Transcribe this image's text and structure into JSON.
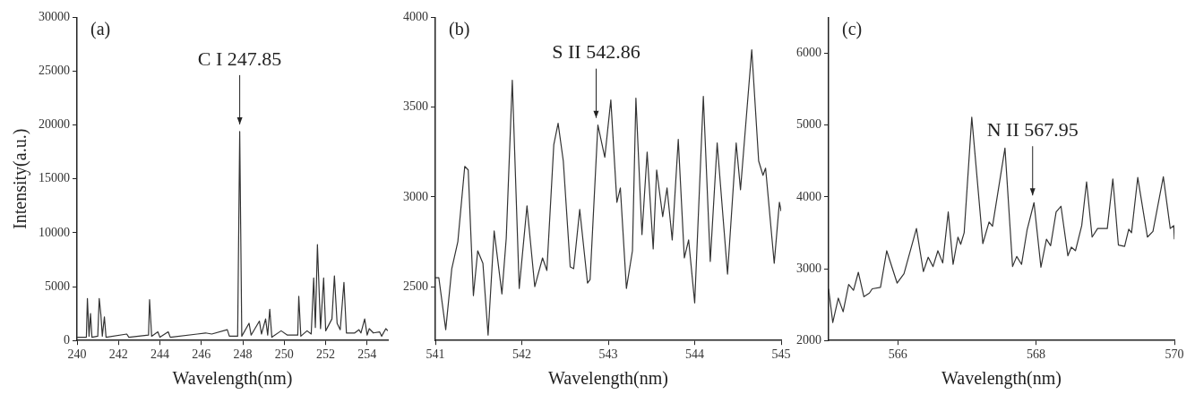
{
  "chart_data": [
    {
      "type": "line",
      "xlabel": "Wavelength(nm)",
      "ylabel": "Intensity(a.u.)",
      "xlim": [
        240,
        255
      ],
      "xticks": [
        240,
        242,
        244,
        246,
        248,
        250,
        252,
        254
      ],
      "ylim": [
        0,
        30000
      ],
      "yticks": [
        0,
        5000,
        10000,
        15000,
        20000,
        25000,
        30000
      ],
      "grid": false,
      "annotations": [
        "(a)",
        {
          "text": "C I 247.85",
          "x": 247.85,
          "y": 19400
        }
      ],
      "series": [
        {
          "color": "#333333",
          "x": [
            240.0,
            240.45,
            240.5,
            240.58,
            240.65,
            240.72,
            241.0,
            241.07,
            241.15,
            241.22,
            241.32,
            241.4,
            242.4,
            242.5,
            243.45,
            243.5,
            243.6,
            243.9,
            244.0,
            244.4,
            244.5,
            245.8,
            246.2,
            246.5,
            247.25,
            247.35,
            247.75,
            247.85,
            247.95,
            248.3,
            248.4,
            248.8,
            248.9,
            249.1,
            249.2,
            249.3,
            249.4,
            249.85,
            250.15,
            250.65,
            250.7,
            250.8,
            251.1,
            251.3,
            251.42,
            251.5,
            251.6,
            251.75,
            251.9,
            252.0,
            252.3,
            252.42,
            252.55,
            252.7,
            252.88,
            253.0,
            253.4,
            253.6,
            253.7,
            253.88,
            254.0,
            254.1,
            254.3,
            254.6,
            254.7,
            254.9,
            255.0
          ],
          "values": [
            300,
            300,
            3900,
            400,
            2500,
            300,
            400,
            3900,
            2400,
            400,
            2200,
            300,
            600,
            300,
            500,
            3800,
            400,
            800,
            300,
            800,
            300,
            600,
            700,
            600,
            1000,
            400,
            400,
            19400,
            400,
            1600,
            500,
            1800,
            600,
            2000,
            500,
            2900,
            300,
            900,
            500,
            500,
            4100,
            400,
            900,
            600,
            5800,
            1200,
            8900,
            1100,
            5800,
            900,
            2000,
            6000,
            1600,
            1000,
            5400,
            700,
            700,
            1000,
            700,
            2000,
            500,
            1100,
            700,
            800,
            400,
            1100,
            900
          ]
        }
      ]
    },
    {
      "type": "line",
      "xlabel": "Wavelength(nm)",
      "xlim": [
        541,
        545
      ],
      "xticks": [
        541,
        542,
        543,
        544,
        545
      ],
      "ylim": [
        2200,
        4000
      ],
      "yticks": [
        2500,
        3000,
        3500,
        4000
      ],
      "grid": false,
      "annotations": [
        "(b)",
        {
          "text": "S II 542.86",
          "x": 542.86,
          "y": 3400
        }
      ],
      "series": [
        {
          "color": "#333333",
          "x": [
            541.0,
            541.04,
            541.12,
            541.19,
            541.26,
            541.34,
            541.38,
            541.44,
            541.49,
            541.55,
            541.61,
            541.68,
            541.77,
            541.82,
            541.89,
            541.97,
            542.06,
            542.15,
            542.24,
            542.29,
            542.37,
            542.42,
            542.48,
            542.56,
            542.6,
            542.67,
            542.76,
            542.79,
            542.88,
            542.96,
            543.03,
            543.1,
            543.14,
            543.21,
            543.28,
            543.32,
            543.39,
            543.45,
            543.52,
            543.56,
            543.63,
            543.68,
            543.74,
            543.81,
            543.88,
            543.93,
            544.0,
            544.1,
            544.18,
            544.26,
            544.38,
            544.48,
            544.53,
            544.66,
            544.74,
            544.79,
            544.82,
            544.92,
            544.98,
            545.0
          ],
          "values": [
            2550,
            2550,
            2260,
            2600,
            2750,
            3170,
            3150,
            2450,
            2700,
            2630,
            2230,
            2810,
            2460,
            2770,
            3650,
            2490,
            2950,
            2500,
            2660,
            2590,
            3290,
            3410,
            3200,
            2610,
            2600,
            2930,
            2520,
            2540,
            3400,
            3220,
            3540,
            2970,
            3050,
            2490,
            2700,
            3550,
            2790,
            3250,
            2710,
            3150,
            2890,
            3050,
            2760,
            3320,
            2660,
            2760,
            2410,
            3560,
            2640,
            3300,
            2570,
            3300,
            3040,
            3820,
            3200,
            3120,
            3160,
            2630,
            2970,
            2920
          ]
        }
      ]
    },
    {
      "type": "line",
      "xlabel": "Wavelength(nm)",
      "xlim": [
        565,
        570
      ],
      "xticks": [
        566,
        568,
        570
      ],
      "ylim": [
        2000,
        6500
      ],
      "yticks": [
        2000,
        3000,
        4000,
        5000,
        6000
      ],
      "grid": false,
      "annotations": [
        "(c)",
        {
          "text": "N II 567.95",
          "x": 567.95,
          "y": 3920
        }
      ],
      "series": [
        {
          "color": "#333333",
          "x": [
            565.0,
            565.06,
            565.14,
            565.21,
            565.29,
            565.36,
            565.43,
            565.51,
            565.59,
            565.63,
            565.75,
            565.84,
            565.99,
            566.09,
            566.27,
            566.37,
            566.44,
            566.51,
            566.58,
            566.65,
            566.73,
            566.8,
            566.87,
            566.91,
            566.96,
            567.07,
            567.23,
            567.32,
            567.37,
            567.55,
            567.66,
            567.72,
            567.79,
            567.87,
            567.97,
            568.07,
            568.15,
            568.21,
            568.29,
            568.36,
            568.46,
            568.51,
            568.57,
            568.66,
            568.73,
            568.81,
            568.89,
            569.03,
            569.11,
            569.19,
            569.28,
            569.34,
            569.38,
            569.47,
            569.61,
            569.69,
            569.84,
            569.94,
            569.99,
            570.0
          ],
          "values": [
            2720,
            2250,
            2590,
            2400,
            2780,
            2700,
            2950,
            2610,
            2660,
            2720,
            2740,
            3250,
            2800,
            2930,
            3560,
            2960,
            3160,
            3030,
            3250,
            3080,
            3790,
            3060,
            3440,
            3340,
            3500,
            5110,
            3350,
            3650,
            3590,
            4680,
            3030,
            3170,
            3060,
            3540,
            3920,
            3020,
            3410,
            3320,
            3790,
            3870,
            3180,
            3300,
            3250,
            3600,
            4210,
            3440,
            3560,
            3560,
            4250,
            3330,
            3310,
            3550,
            3500,
            4270,
            3440,
            3520,
            4280,
            3560,
            3600,
            3410
          ]
        }
      ]
    }
  ]
}
